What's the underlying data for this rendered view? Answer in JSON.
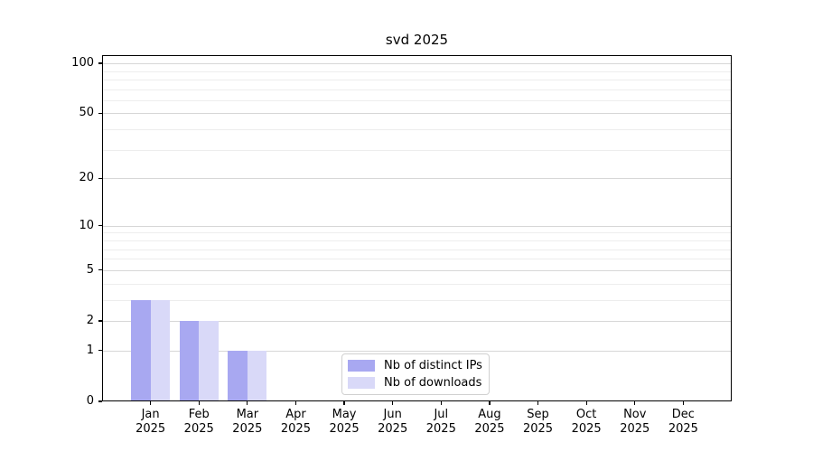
{
  "figure": {
    "title": "svd 2025"
  },
  "chart_data": {
    "type": "bar",
    "title": "svd 2025",
    "categories": [
      "Jan",
      "Feb",
      "Mar",
      "Apr",
      "May",
      "Jun",
      "Jul",
      "Aug",
      "Sep",
      "Oct",
      "Nov",
      "Dec"
    ],
    "category_year": "2025",
    "series": [
      {
        "name": "Nb of distinct IPs",
        "color": "#a8a8f1",
        "values": [
          3,
          2,
          1,
          0,
          0,
          0,
          0,
          0,
          0,
          0,
          0,
          0
        ]
      },
      {
        "name": "Nb of downloads",
        "color": "#d9d9f8",
        "values": [
          3,
          2,
          1,
          0,
          0,
          0,
          0,
          0,
          0,
          0,
          0,
          0
        ]
      }
    ],
    "xlabel": "",
    "ylabel": "",
    "yscale": "log1p",
    "ylim": [
      0,
      112
    ],
    "yticks": [
      100,
      50,
      20,
      10,
      5,
      2,
      1,
      0
    ],
    "ytick_labels": [
      "100",
      "50",
      "20",
      "10",
      "5",
      "2",
      "1",
      "0"
    ],
    "minor_yticks": [
      90,
      80,
      70,
      60,
      40,
      30,
      9,
      8,
      7,
      6,
      4,
      3
    ],
    "grid": "horizontal",
    "legend": {
      "position": "lower-center",
      "entries": [
        "Nb of distinct IPs",
        "Nb of downloads"
      ]
    }
  }
}
